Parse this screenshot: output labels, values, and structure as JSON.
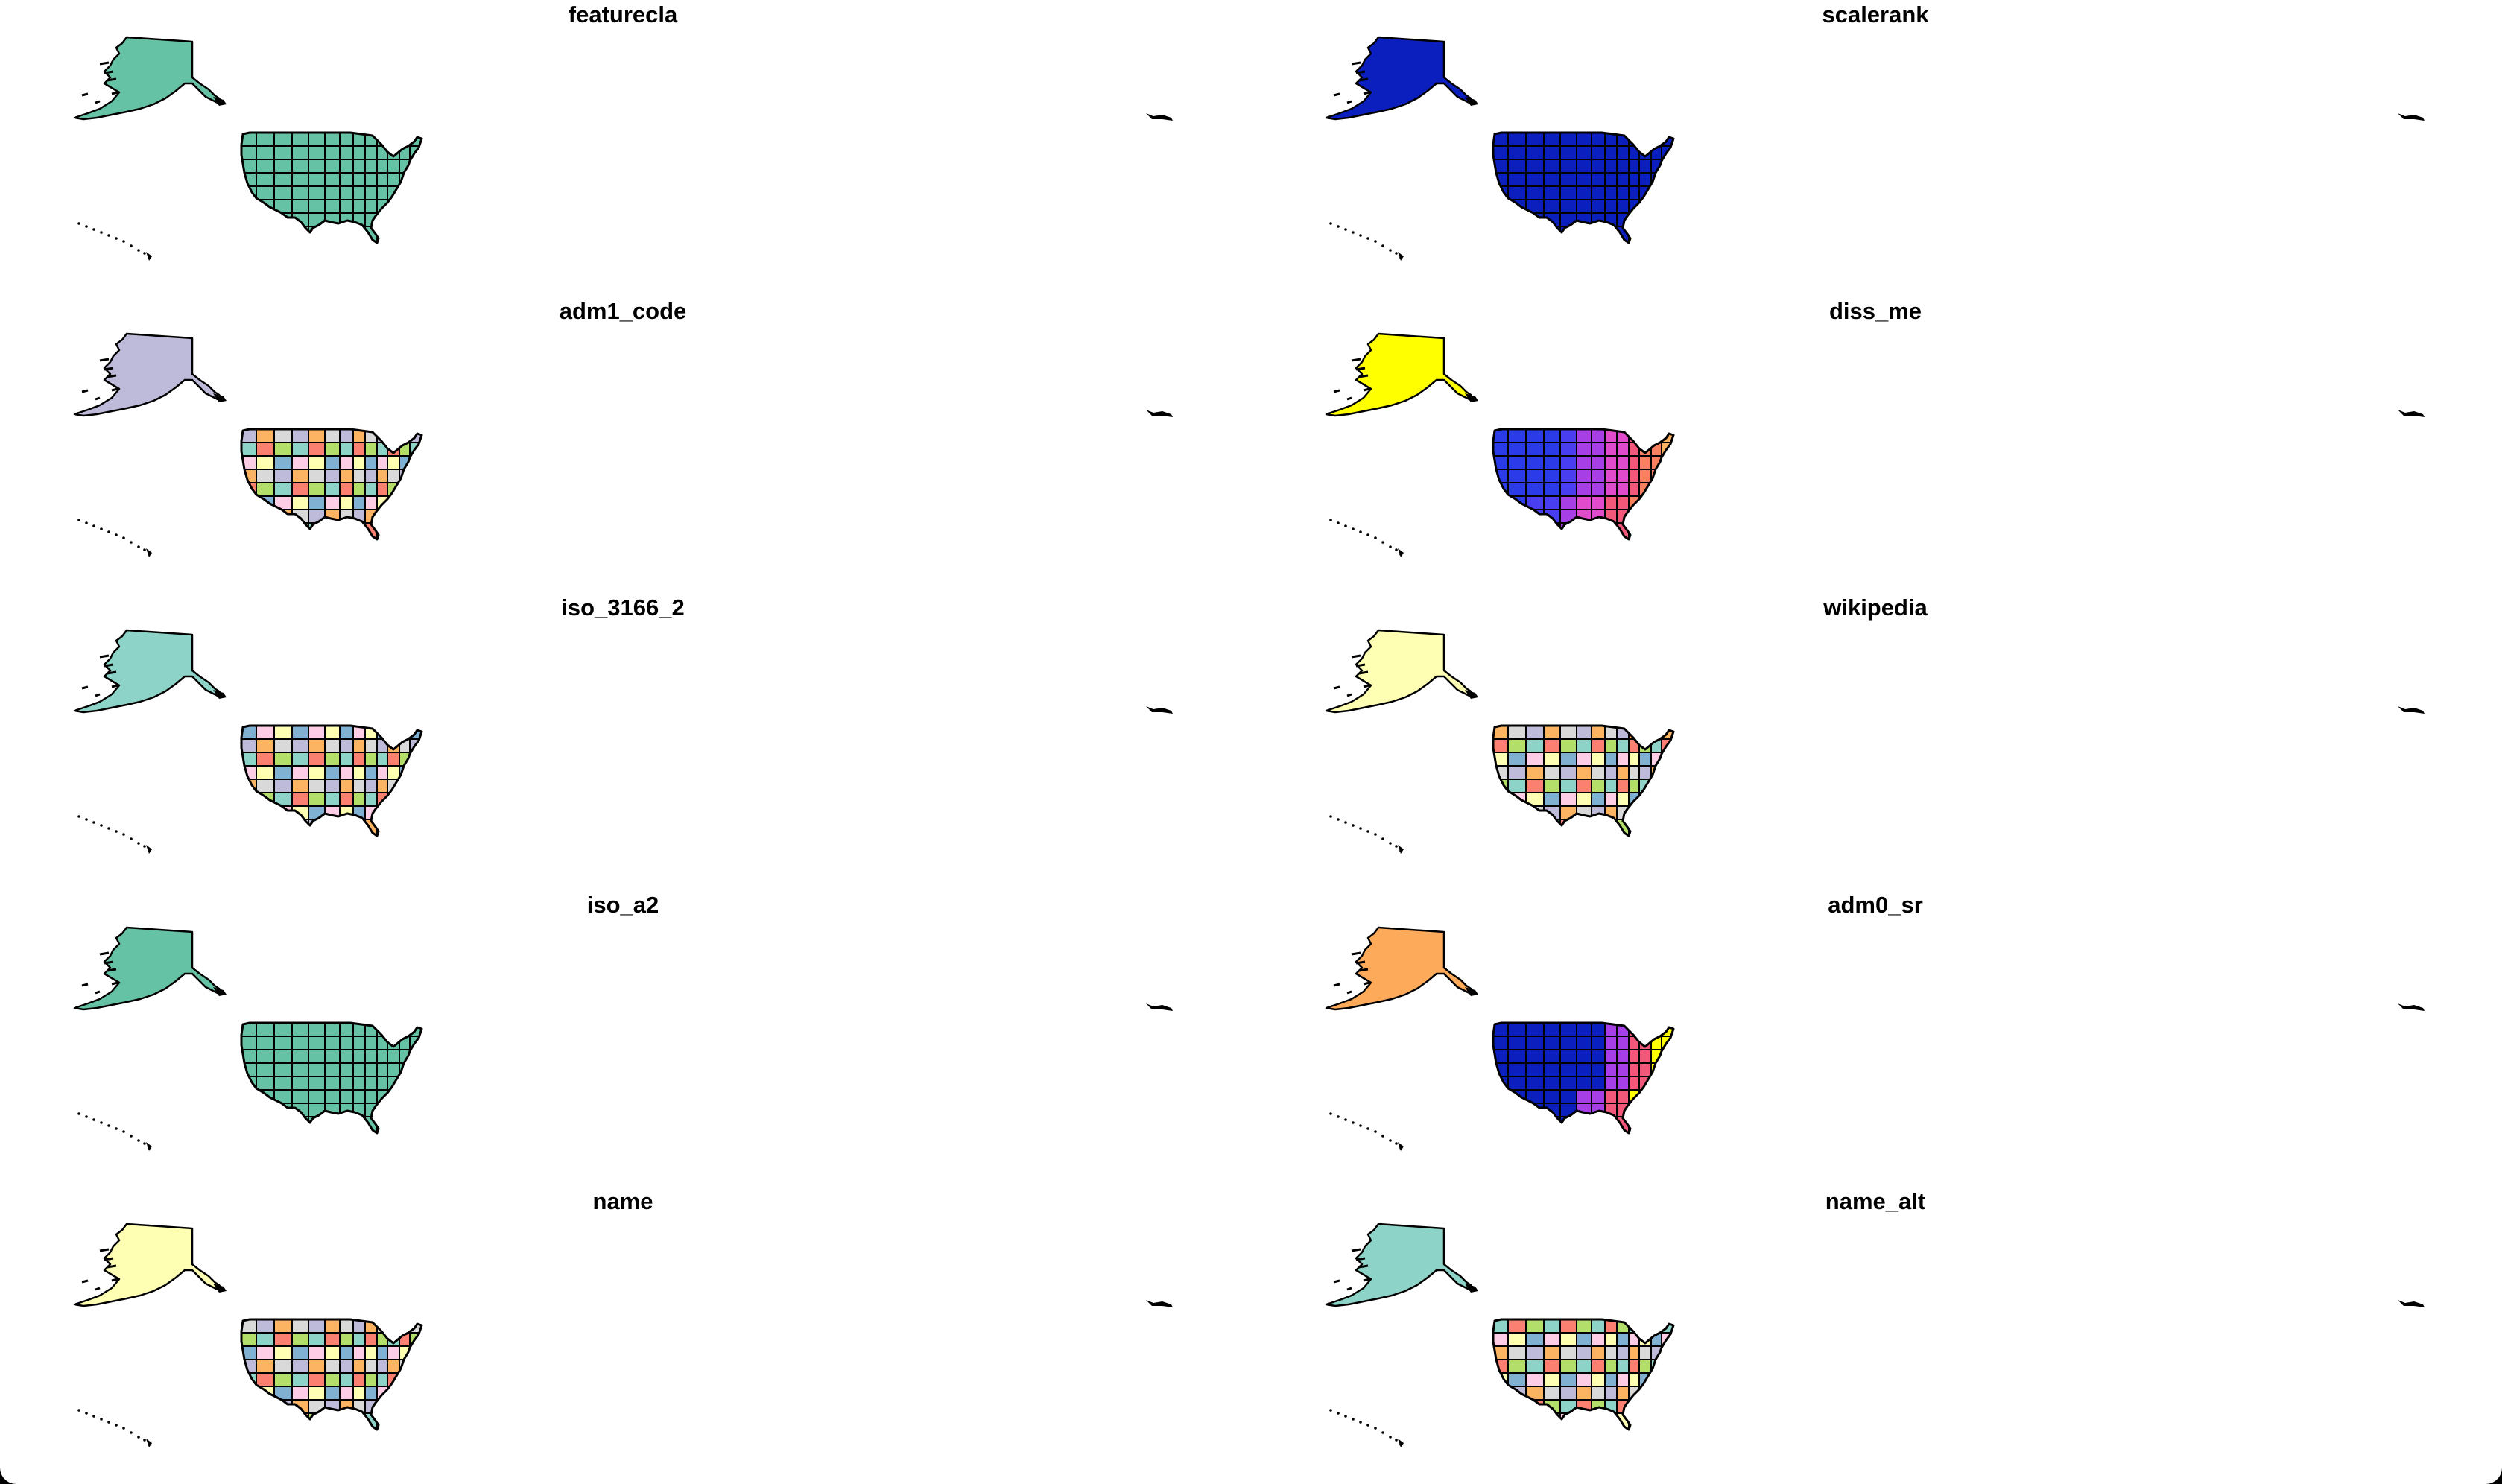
{
  "panels": [
    {
      "title": "featurecla",
      "alaska_fill": "#66c2a5",
      "palette": [
        "#66c2a5"
      ]
    },
    {
      "title": "scalerank",
      "alaska_fill": "#0a1fbe",
      "palette": [
        "#0a1fbe"
      ]
    },
    {
      "title": "adm1_code",
      "alaska_fill": "#bebada",
      "palette": [
        "#8dd3c7",
        "#ffffb3",
        "#bebada",
        "#fb8072",
        "#80b1d3",
        "#fdb462",
        "#b3de69",
        "#fccde5",
        "#d9d9d9"
      ]
    },
    {
      "title": "diss_me",
      "alaska_fill": "#ffff00",
      "palette": [
        "#2b3be8",
        "#2b3be8",
        "#4a3ff0",
        "#a63fe6",
        "#e04bcc",
        "#f2587a",
        "#fb8060",
        "#fdb462"
      ]
    },
    {
      "title": "iso_3166_2",
      "alaska_fill": "#8dd3c7",
      "palette": [
        "#8dd3c7",
        "#ffffb3",
        "#bebada",
        "#fb8072",
        "#80b1d3",
        "#fdb462",
        "#b3de69",
        "#fccde5",
        "#d9d9d9"
      ]
    },
    {
      "title": "wikipedia",
      "alaska_fill": "#ffffb3",
      "palette": [
        "#8dd3c7",
        "#ffffb3",
        "#bebada",
        "#fb8072",
        "#80b1d3",
        "#fdb462",
        "#b3de69",
        "#fccde5",
        "#d9d9d9"
      ]
    },
    {
      "title": "iso_a2",
      "alaska_fill": "#66c2a5",
      "palette": [
        "#66c2a5"
      ]
    },
    {
      "title": "adm0_sr",
      "alaska_fill": "#fdab5a",
      "palette": [
        "#0a1fbe",
        "#0a1fbe",
        "#0a1fbe",
        "#a63fe6",
        "#f2587a",
        "#ffff00"
      ]
    },
    {
      "title": "name",
      "alaska_fill": "#ffffb3",
      "palette": [
        "#8dd3c7",
        "#ffffb3",
        "#bebada",
        "#fb8072",
        "#80b1d3",
        "#fdb462",
        "#b3de69",
        "#fccde5",
        "#d9d9d9"
      ]
    },
    {
      "title": "name_alt",
      "alaska_fill": "#8dd3c7",
      "palette": [
        "#8dd3c7",
        "#ffffb3",
        "#bebada",
        "#fb8072",
        "#80b1d3",
        "#fdb462",
        "#b3de69",
        "#fccde5",
        "#d9d9d9"
      ]
    }
  ]
}
